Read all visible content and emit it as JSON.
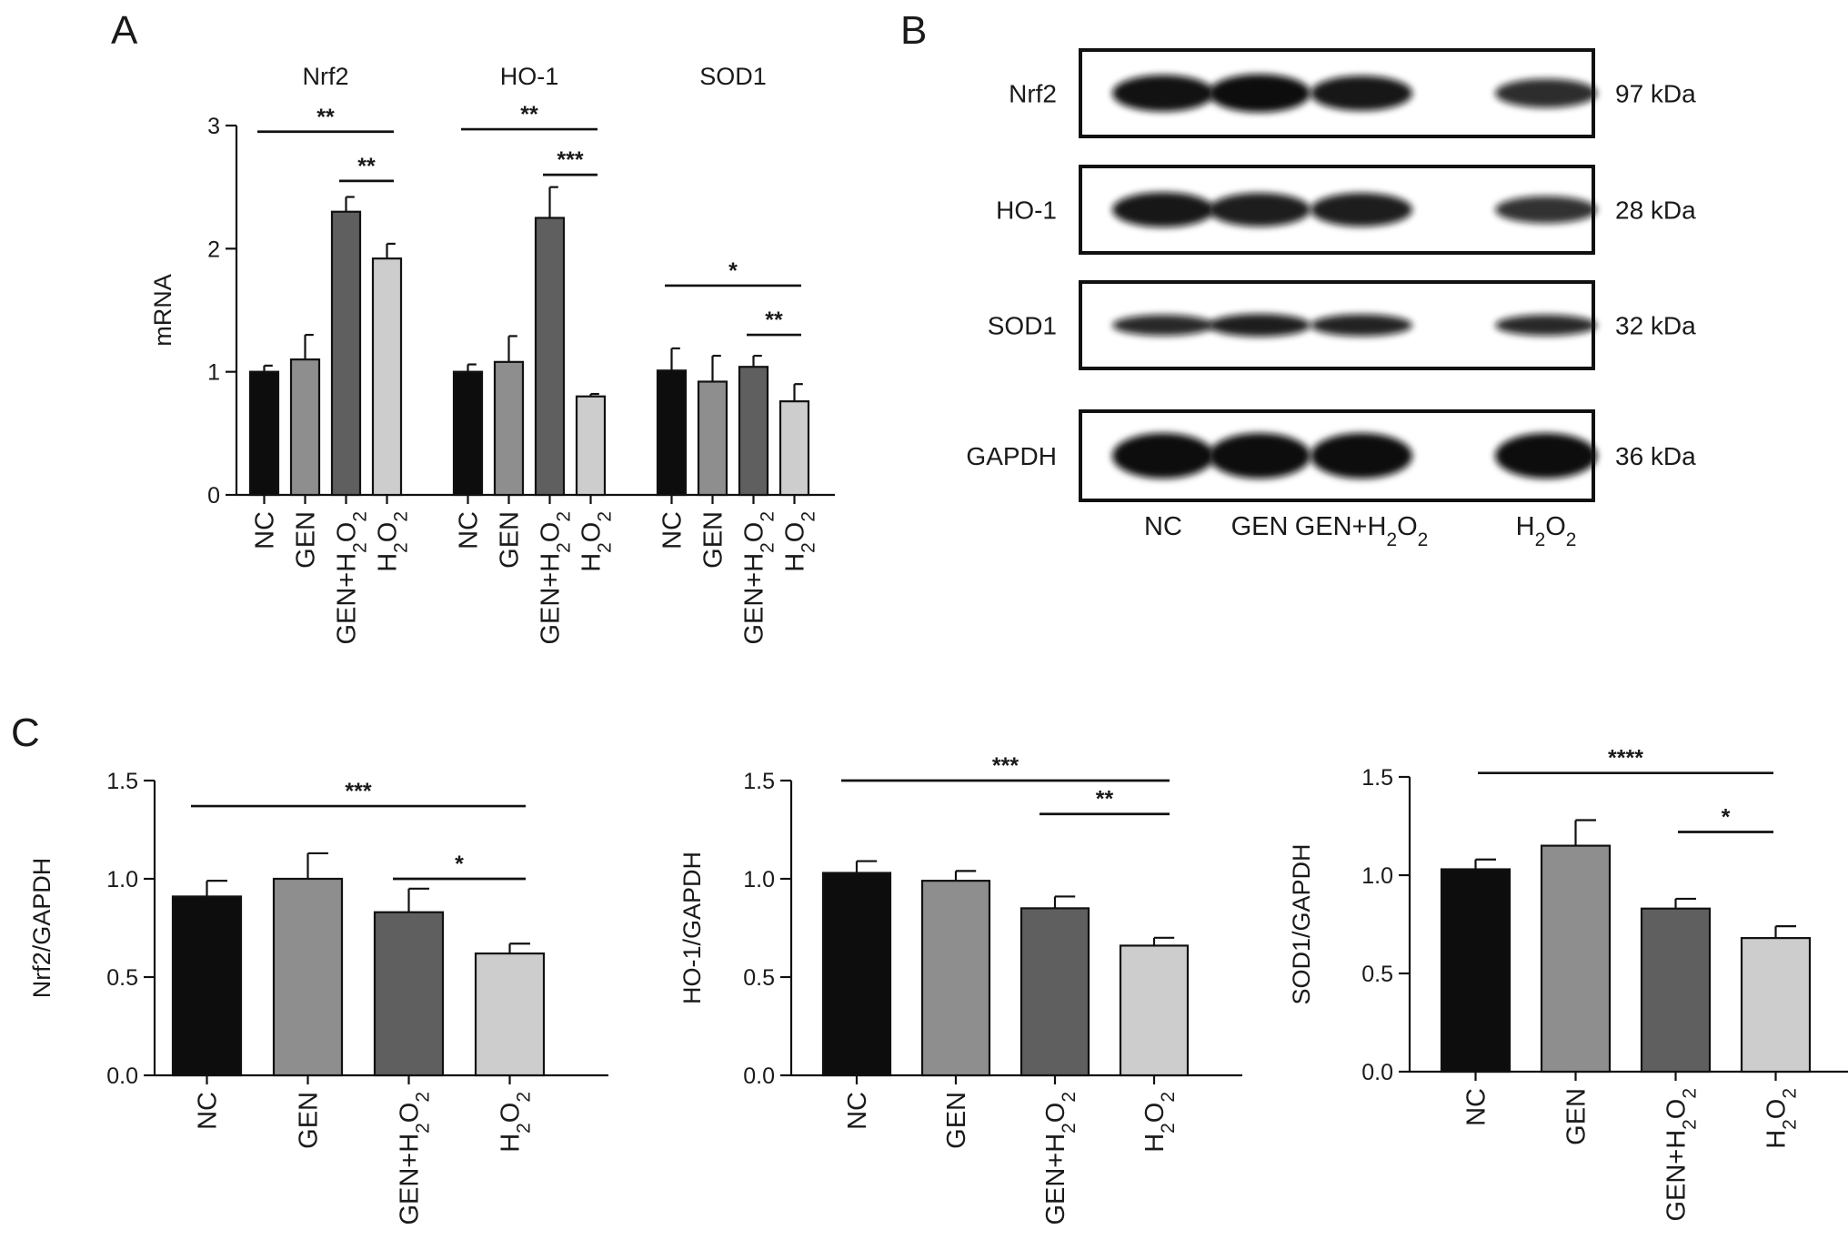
{
  "panel_letters": [
    "A",
    "B",
    "C"
  ],
  "colors": {
    "NC": "#0d0d0d",
    "GEN": "#8e8e8e",
    "GEN+H2O2": "#5f5f5f",
    "H2O2": "#cdcdcd"
  },
  "chart_data": [
    {
      "id": "A",
      "type": "bar",
      "ylabel": "mRNA",
      "ylim": [
        0,
        3
      ],
      "yticks": [
        {
          "v": 0,
          "t": "0"
        },
        {
          "v": 1,
          "t": "1"
        },
        {
          "v": 2,
          "t": "2"
        },
        {
          "v": 3,
          "t": "3"
        }
      ],
      "grouped": true,
      "groups": [
        {
          "name": "Nrf2",
          "bars": [
            {
              "cat": "NC",
              "value": 1.0,
              "err": 0.05
            },
            {
              "cat": "GEN",
              "value": 1.1,
              "err": 0.2
            },
            {
              "cat": "GEN+H2O2",
              "value": 2.3,
              "err": 0.12
            },
            {
              "cat": "H2O2",
              "value": 1.92,
              "err": 0.12
            }
          ],
          "sig": [
            {
              "from": 0,
              "to": 3,
              "y": 2.95,
              "label": "**"
            },
            {
              "from": 2,
              "to": 3,
              "y": 2.55,
              "label": "**"
            }
          ]
        },
        {
          "name": "HO-1",
          "bars": [
            {
              "cat": "NC",
              "value": 1.0,
              "err": 0.06
            },
            {
              "cat": "GEN",
              "value": 1.08,
              "err": 0.21
            },
            {
              "cat": "GEN+H2O2",
              "value": 2.25,
              "err": 0.25
            },
            {
              "cat": "H2O2",
              "value": 0.8,
              "err": 0.02
            }
          ],
          "sig": [
            {
              "from": 0,
              "to": 3,
              "y": 2.97,
              "label": "**"
            },
            {
              "from": 2,
              "to": 3,
              "y": 2.6,
              "label": "***"
            }
          ]
        },
        {
          "name": "SOD1",
          "bars": [
            {
              "cat": "NC",
              "value": 1.01,
              "err": 0.18
            },
            {
              "cat": "GEN",
              "value": 0.92,
              "err": 0.21
            },
            {
              "cat": "GEN+H2O2",
              "value": 1.04,
              "err": 0.09
            },
            {
              "cat": "H2O2",
              "value": 0.76,
              "err": 0.14
            }
          ],
          "sig": [
            {
              "from": 0,
              "to": 3,
              "y": 1.7,
              "label": "*"
            },
            {
              "from": 2,
              "to": 3,
              "y": 1.3,
              "label": "**"
            }
          ]
        }
      ]
    },
    {
      "id": "C1",
      "type": "bar",
      "ylabel": "Nrf2/GAPDH",
      "ylim": [
        0,
        1.5
      ],
      "yticks": [
        {
          "v": 0,
          "t": "0.0"
        },
        {
          "v": 0.5,
          "t": "0.5"
        },
        {
          "v": 1,
          "t": "1.0"
        },
        {
          "v": 1.5,
          "t": "1.5"
        }
      ],
      "bars": [
        {
          "cat": "NC",
          "value": 0.91,
          "err": 0.08
        },
        {
          "cat": "GEN",
          "value": 1.0,
          "err": 0.13
        },
        {
          "cat": "GEN+H2O2",
          "value": 0.83,
          "err": 0.12
        },
        {
          "cat": "H2O2",
          "value": 0.62,
          "err": 0.05
        }
      ],
      "sig": [
        {
          "from": 0,
          "to": 3,
          "y": 1.37,
          "label": "***"
        },
        {
          "from": 2,
          "to": 3,
          "y": 1.0,
          "label": "*"
        }
      ]
    },
    {
      "id": "C2",
      "type": "bar",
      "ylabel": "HO-1/GAPDH",
      "ylim": [
        0,
        1.5
      ],
      "yticks": [
        {
          "v": 0,
          "t": "0.0"
        },
        {
          "v": 0.5,
          "t": "0.5"
        },
        {
          "v": 1,
          "t": "1.0"
        },
        {
          "v": 1.5,
          "t": "1.5"
        }
      ],
      "bars": [
        {
          "cat": "NC",
          "value": 1.03,
          "err": 0.06
        },
        {
          "cat": "GEN",
          "value": 0.99,
          "err": 0.05
        },
        {
          "cat": "GEN+H2O2",
          "value": 0.85,
          "err": 0.06
        },
        {
          "cat": "H2O2",
          "value": 0.66,
          "err": 0.04
        }
      ],
      "sig": [
        {
          "from": 0,
          "to": 3,
          "y": 1.5,
          "label": "***"
        },
        {
          "from": 2,
          "to": 3,
          "y": 1.33,
          "label": "**"
        }
      ]
    },
    {
      "id": "C3",
      "type": "bar",
      "ylabel": "SOD1/GAPDH",
      "ylim": [
        0,
        1.5
      ],
      "yticks": [
        {
          "v": 0,
          "t": "0.0"
        },
        {
          "v": 0.5,
          "t": "0.5"
        },
        {
          "v": 1,
          "t": "1.0"
        },
        {
          "v": 1.5,
          "t": "1.5"
        }
      ],
      "bars": [
        {
          "cat": "NC",
          "value": 1.03,
          "err": 0.05
        },
        {
          "cat": "GEN",
          "value": 1.15,
          "err": 0.13
        },
        {
          "cat": "GEN+H2O2",
          "value": 0.83,
          "err": 0.05
        },
        {
          "cat": "H2O2",
          "value": 0.68,
          "err": 0.06
        }
      ],
      "sig": [
        {
          "from": 0,
          "to": 3,
          "y": 1.52,
          "label": "****"
        },
        {
          "from": 2,
          "to": 3,
          "y": 1.22,
          "label": "*"
        }
      ]
    }
  ],
  "western_blot": {
    "rows": [
      {
        "label": "Nrf2",
        "kda": "97 kDa",
        "intensity": [
          0.95,
          1.0,
          0.9,
          0.7
        ]
      },
      {
        "label": "HO-1",
        "kda": "28 kDa",
        "intensity": [
          0.9,
          0.85,
          0.85,
          0.65
        ]
      },
      {
        "label": "SOD1",
        "kda": "32 kDa",
        "intensity": [
          0.75,
          0.85,
          0.8,
          0.75
        ]
      },
      {
        "label": "GAPDH",
        "kda": "36 kDa",
        "intensity": [
          1.0,
          1.0,
          1.0,
          1.0
        ]
      }
    ],
    "lanes": [
      "NC",
      "GEN",
      "GEN+H2O2",
      "H2O2"
    ]
  }
}
